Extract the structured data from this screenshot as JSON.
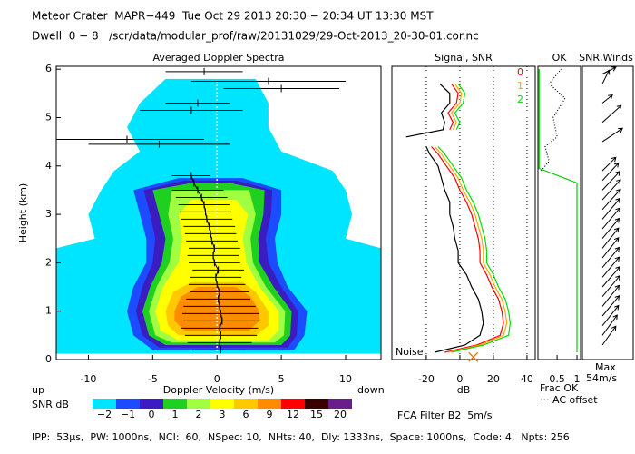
{
  "header": {
    "title": "Meteor Crater  MAPR−449  Tue Oct 29 2013 20:30 − 20:34 UT 13:30 MST",
    "subtitle": "Dwell  0 − 8   /scr/data/modular_prof/raw/20131029/29-Oct-2013_20-30-01.cor.nc"
  },
  "footer": "IPP:  53μs,  PW: 1000ns,  NCI:  60,  NSpec: 10,  NHts: 40,  Dly: 1333ns,  Space: 1000ns,  Code: 4,  Npts: 256",
  "filter_note": "FCA Filter B2  5m/s",
  "chart_data": [
    {
      "type": "contour",
      "title": "Averaged Doppler Spectra",
      "xlabel": "Doppler Velocity (m/s)",
      "ylabel": "Height (km)",
      "left_note": "up",
      "right_note": "down",
      "xlim": [
        -12.5,
        12.75
      ],
      "ylim": [
        0,
        6.06
      ],
      "xticks": [
        -10,
        -5,
        0,
        5,
        10
      ],
      "yticks": [
        0,
        1,
        2,
        3,
        4,
        5,
        6
      ],
      "colorbar": {
        "label": "SNR dB",
        "levels": [
          {
            "value": -2,
            "label": "−2"
          },
          {
            "value": -1,
            "label": "−1"
          },
          0,
          1,
          2,
          3,
          6,
          9,
          12,
          15,
          20
        ],
        "colors": [
          "#00e5ff",
          "#1c4cff",
          "#3a1cc0",
          "#20d020",
          "#a0ff40",
          "#ffff00",
          "#ffc800",
          "#ff8c00",
          "#ff0000",
          "#3a0000",
          "#6a1e8c"
        ]
      },
      "regions": [
        {
          "level": -2,
          "heights": [
            0.12,
            0.5,
            1.0,
            1.5,
            2.0,
            2.3,
            2.5,
            3.0,
            3.5,
            3.9,
            4.3,
            4.8,
            5.3,
            5.8
          ],
          "left": [
            -12.5,
            -12.5,
            -12.5,
            -12.5,
            -12.5,
            -12.5,
            -9.5,
            -10,
            -9,
            -8,
            -6,
            -7,
            -6,
            -4
          ],
          "right": [
            12.75,
            12.75,
            12.75,
            12.75,
            12.75,
            12.75,
            10,
            10.5,
            10,
            9,
            5,
            4,
            4,
            3
          ]
        },
        {
          "level": -1,
          "heights": [
            0.2,
            0.5,
            1.0,
            1.5,
            2.0,
            2.5,
            3.0,
            3.5,
            3.75
          ],
          "left": [
            -5,
            -6.5,
            -7,
            -6.5,
            -5.5,
            -5.5,
            -6,
            -6.5,
            -3
          ],
          "right": [
            6,
            6.8,
            7,
            5.5,
            4.7,
            4.5,
            5,
            5,
            2
          ]
        },
        {
          "level": 0,
          "heights": [
            0.25,
            0.5,
            1.0,
            1.5,
            2.0,
            2.5,
            3.0,
            3.5,
            3.7
          ],
          "left": [
            -4.5,
            -5.8,
            -6.3,
            -5.8,
            -5,
            -4.8,
            -5.2,
            -5.7,
            -2.5
          ],
          "right": [
            5.5,
            6.2,
            6.3,
            5,
            4,
            3.8,
            4.2,
            4.3,
            1.5
          ]
        },
        {
          "level": 1,
          "heights": [
            0.3,
            0.5,
            1.0,
            1.5,
            2.0,
            2.5,
            3.0,
            3.5,
            3.65
          ],
          "left": [
            -4,
            -5.3,
            -5.8,
            -5.2,
            -4.3,
            -4,
            -4.5,
            -5,
            -2
          ],
          "right": [
            5,
            5.7,
            5.8,
            4.4,
            3.3,
            3.2,
            3.6,
            3.7,
            1
          ]
        },
        {
          "level": 2,
          "heights": [
            0.35,
            0.5,
            1.0,
            1.5,
            2.0,
            2.5,
            3.0,
            3.5
          ],
          "left": [
            -3.5,
            -4.8,
            -5.3,
            -4.7,
            -3.7,
            -3.4,
            -3.8,
            -3.5
          ],
          "right": [
            4.5,
            5.2,
            5.3,
            3.8,
            2.8,
            2.6,
            3,
            2.5
          ]
        },
        {
          "level": 3,
          "heights": [
            0.4,
            0.6,
            1.0,
            1.5,
            2.0,
            2.5,
            3.0,
            3.3
          ],
          "left": [
            -3,
            -4.4,
            -4.8,
            -4.2,
            -3,
            -2.7,
            -3,
            -2
          ],
          "right": [
            4,
            4.8,
            4.8,
            3.3,
            2.3,
            2,
            2.4,
            1.5
          ]
        },
        {
          "level": 6,
          "heights": [
            0.5,
            0.7,
            1.0,
            1.4,
            1.6
          ],
          "left": [
            -3,
            -3.8,
            -4,
            -3.4,
            -2
          ],
          "right": [
            3,
            4,
            4,
            3,
            2
          ]
        },
        {
          "level": 9,
          "heights": [
            0.6,
            0.8,
            1.0,
            1.3,
            1.5
          ],
          "left": [
            -2.5,
            -3.3,
            -3.3,
            -2.8,
            -1.5
          ],
          "right": [
            2.5,
            3.3,
            3.3,
            2.6,
            1.5
          ]
        }
      ],
      "profile": {
        "heights": [
          0.2,
          0.35,
          0.5,
          0.65,
          0.8,
          0.95,
          1.1,
          1.25,
          1.4,
          1.55,
          1.7,
          1.85,
          2.0,
          2.15,
          2.3,
          2.45,
          2.6,
          2.75,
          2.9,
          3.05,
          3.2,
          3.35,
          3.5,
          3.65,
          3.8
        ],
        "velocity": [
          0.3,
          0.2,
          0.3,
          0.2,
          0.4,
          0.3,
          0.2,
          0.1,
          0.2,
          0.0,
          -0.1,
          0.1,
          -0.2,
          -0.3,
          -0.2,
          -0.4,
          -0.5,
          -0.6,
          -0.8,
          -0.9,
          -1.0,
          -1.2,
          -1.5,
          -1.8,
          -2.0
        ],
        "width": [
          2,
          2.5,
          2.8,
          3,
          3,
          3,
          2.8,
          2.5,
          2.3,
          2.2,
          2,
          2,
          2,
          2,
          2,
          2,
          2,
          2,
          2,
          2,
          2,
          2,
          2,
          2,
          1.5
        ]
      },
      "outliers": {
        "heights": [
          4.45,
          4.55,
          5.15,
          5.3,
          5.6,
          5.75,
          5.95
        ],
        "velocity": [
          -4.5,
          -7,
          -2,
          -1.5,
          5,
          4,
          -1
        ],
        "width": [
          5.5,
          6,
          4,
          2.5,
          4.5,
          6,
          3
        ]
      }
    },
    {
      "type": "line",
      "title": "Signal, SNR",
      "xlabel": "dB",
      "note": "Noise",
      "grid": true,
      "xlim": [
        -40.5,
        44.9
      ],
      "xticks": [
        -20,
        0,
        20,
        40
      ],
      "heights": [
        0.15,
        0.3,
        0.5,
        0.75,
        1.0,
        1.25,
        1.5,
        1.75,
        2.0,
        2.25,
        2.5,
        2.75,
        3.0,
        3.25,
        3.5,
        3.75,
        4.0,
        4.25,
        4.4,
        4.5,
        4.6,
        4.75,
        4.9,
        5.1,
        5.3,
        5.5,
        5.7
      ],
      "series": [
        {
          "color": "#000000",
          "values": [
            -15,
            3,
            12,
            14,
            13,
            11,
            7,
            4,
            -1,
            -1,
            -3,
            -4,
            -6,
            -6,
            -9,
            -11,
            -13,
            -18,
            -20,
            null,
            -32,
            -10,
            -9,
            -11,
            -6,
            -6,
            -12
          ]
        },
        {
          "name": "0",
          "color": "#ff0000",
          "values": [
            -9,
            10,
            24,
            26,
            25,
            23,
            19,
            16,
            12,
            12,
            11,
            9,
            7,
            4,
            0,
            -3,
            -8,
            -13,
            -17,
            null,
            null,
            -6,
            -4,
            -7,
            -2,
            -1,
            -5
          ]
        },
        {
          "name": "1",
          "color": "#ffa500",
          "values": [
            -7,
            12,
            26,
            28,
            27,
            25,
            21,
            18,
            14,
            14,
            13,
            11,
            9,
            6,
            2,
            -1,
            -6,
            -11,
            -15,
            null,
            null,
            -4,
            -2,
            -5,
            0,
            1,
            -3
          ]
        },
        {
          "name": "2",
          "color": "#00dd00",
          "values": [
            -5,
            14,
            29,
            30,
            29,
            27,
            23,
            20,
            16,
            16,
            15,
            13,
            11,
            8,
            4,
            1,
            -4,
            -9,
            -13,
            null,
            null,
            -2,
            0,
            -3,
            2,
            3,
            -1
          ]
        }
      ],
      "noise_marker": {
        "x": 8,
        "y": 0.05,
        "color": "#e07000"
      }
    },
    {
      "type": "line",
      "title": "OK",
      "xlabel": "Frac OK",
      "note": "··· AC offset",
      "xlim": [
        0.02,
        1.09
      ],
      "xticks": [
        0.5,
        1
      ],
      "series": [
        {
          "color": "#00cc00",
          "heights": [
            0.15,
            3.65,
            3.95,
            6.0
          ],
          "values": [
            1.0,
            1.0,
            0.05,
            0.05
          ]
        },
        {
          "color": "#000000",
          "dashed": true,
          "heights": [
            3.9,
            4.1,
            4.4,
            4.6,
            5.0,
            5.4,
            5.7,
            6.0
          ],
          "values": [
            0.1,
            0.3,
            0.2,
            0.5,
            0.4,
            0.7,
            0.3,
            0.6
          ]
        }
      ]
    },
    {
      "type": "barbs",
      "title": "SNR,Winds",
      "max_label": "Max",
      "max_speed": {
        "value": 54,
        "label": "54m/s"
      },
      "heights": [
        0.3,
        0.5,
        0.7,
        0.9,
        1.1,
        1.3,
        1.5,
        1.7,
        1.9,
        2.1,
        2.3,
        2.5,
        2.7,
        2.9,
        3.1,
        3.3,
        3.5,
        3.7,
        3.9,
        4.5,
        4.9,
        5.3,
        5.7,
        5.9
      ],
      "u": [
        20,
        22,
        24,
        25,
        25,
        26,
        26,
        25,
        25,
        24,
        24,
        25,
        26,
        26,
        27,
        27,
        26,
        24,
        20,
        30,
        28,
        15,
        10,
        20
      ],
      "v": [
        28,
        30,
        30,
        30,
        31,
        31,
        30,
        30,
        30,
        30,
        30,
        30,
        31,
        31,
        30,
        30,
        28,
        26,
        20,
        20,
        25,
        12,
        20,
        10
      ]
    }
  ]
}
